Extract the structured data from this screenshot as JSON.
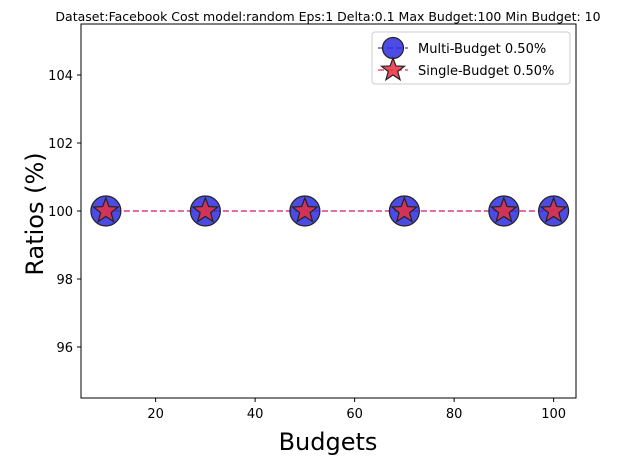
{
  "chart_data": {
    "type": "scatter",
    "title": "Dataset:Facebook Cost model:random Eps:1 Delta:0.1 Max Budget:100 Min Budget: 10",
    "xlabel": "Budgets",
    "ylabel": "Ratios (%)",
    "xlim": [
      5,
      104.5
    ],
    "ylim": [
      94.5,
      105.5
    ],
    "xticks": [
      20,
      40,
      60,
      80,
      100
    ],
    "yticks": [
      96,
      98,
      100,
      102,
      104
    ],
    "grid": false,
    "legend_position": "top-right",
    "x": [
      10,
      30,
      50,
      70,
      90,
      100
    ],
    "series": [
      {
        "name": "Multi-Budget 0.50%",
        "values": [
          100,
          100,
          100,
          100,
          100,
          100
        ],
        "marker": "circle",
        "color": "#2d2ddf",
        "line_color": "#5b5bff",
        "line_style": "dashed"
      },
      {
        "name": "Single-Budget 0.50%",
        "values": [
          100,
          100,
          100,
          100,
          100,
          100
        ],
        "marker": "star",
        "color": "#e8303f",
        "line_color": "#ff4d6a",
        "line_style": "dashed"
      }
    ]
  }
}
